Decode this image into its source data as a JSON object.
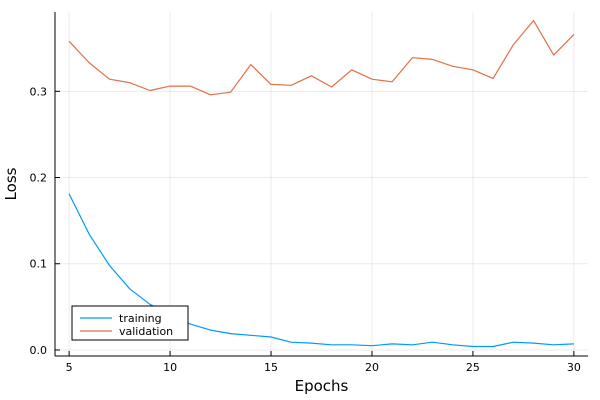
{
  "chart_data": {
    "type": "line",
    "xlabel": "Epochs",
    "ylabel": "Loss",
    "xlim": [
      4.3,
      30.7
    ],
    "ylim": [
      -0.007,
      0.392
    ],
    "xticks": [
      5,
      10,
      15,
      20,
      25,
      30
    ],
    "yticks": [
      0.0,
      0.1,
      0.2,
      0.3
    ],
    "ytick_labels": [
      "0.0",
      "0.1",
      "0.2",
      "0.3"
    ],
    "grid": true,
    "legend_position": "bottom-left",
    "x": [
      5,
      6,
      7,
      8,
      9,
      10,
      11,
      12,
      13,
      14,
      15,
      16,
      17,
      18,
      19,
      20,
      21,
      22,
      23,
      24,
      25,
      26,
      27,
      28,
      29,
      30
    ],
    "series": [
      {
        "name": "training",
        "color": "#009AFA",
        "values": [
          0.181,
          0.134,
          0.098,
          0.071,
          0.053,
          0.041,
          0.03,
          0.023,
          0.019,
          0.017,
          0.015,
          0.009,
          0.008,
          0.006,
          0.006,
          0.005,
          0.007,
          0.006,
          0.009,
          0.006,
          0.004,
          0.004,
          0.009,
          0.008,
          0.006,
          0.007
        ]
      },
      {
        "name": "validation",
        "color": "#E26F46",
        "values": [
          0.358,
          0.333,
          0.314,
          0.31,
          0.301,
          0.306,
          0.306,
          0.296,
          0.299,
          0.331,
          0.308,
          0.307,
          0.318,
          0.305,
          0.325,
          0.314,
          0.311,
          0.339,
          0.337,
          0.329,
          0.325,
          0.315,
          0.354,
          0.382,
          0.342,
          0.366
        ]
      }
    ]
  }
}
